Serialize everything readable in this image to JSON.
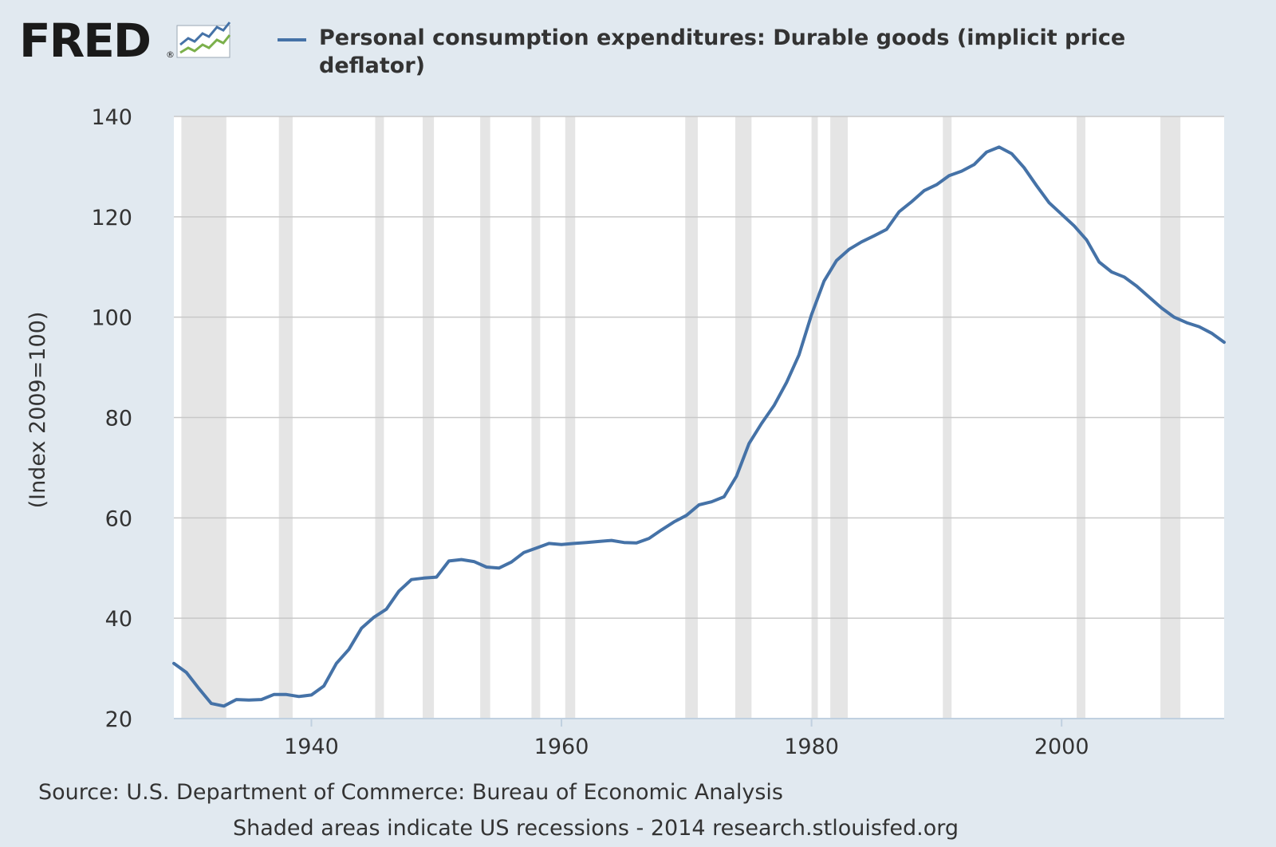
{
  "logo": {
    "text": "FRED",
    "reg": "®"
  },
  "colors": {
    "background": "#e1e9f0",
    "series": "#4572a7",
    "recession": "#e5e5e5",
    "grid": "#c8c8c8",
    "plot": "#ffffff"
  },
  "footer": {
    "source": "Source: U.S. Department of Commerce: Bureau of Economic Analysis",
    "shading_note": "Shaded areas indicate US recessions - 2014 research.stlouisfed.org"
  },
  "chart_data": {
    "type": "line",
    "title": "Personal consumption expenditures: Durable goods (implicit price deflator)",
    "xlabel": "",
    "ylabel": "(Index 2009=100)",
    "xlim": [
      1929,
      2013
    ],
    "ylim": [
      20,
      140
    ],
    "y_ticks": [
      20,
      40,
      60,
      80,
      100,
      120,
      140
    ],
    "x_ticks": [
      1940,
      1960,
      1980,
      2000
    ],
    "grid": true,
    "recessions": [
      [
        1929.6,
        1933.2
      ],
      [
        1937.4,
        1938.5
      ],
      [
        1945.1,
        1945.8
      ],
      [
        1948.9,
        1949.8
      ],
      [
        1953.5,
        1954.3
      ],
      [
        1957.6,
        1958.3
      ],
      [
        1960.3,
        1961.1
      ],
      [
        1969.9,
        1970.9
      ],
      [
        1973.9,
        1975.2
      ],
      [
        1980.0,
        1980.5
      ],
      [
        1981.5,
        1982.9
      ],
      [
        1990.5,
        1991.2
      ],
      [
        2001.2,
        2001.9
      ],
      [
        2007.9,
        2009.5
      ]
    ],
    "series": [
      {
        "name": "Personal consumption expenditures: Durable goods (implicit price deflator)",
        "x": [
          1929,
          1930,
          1931,
          1932,
          1933,
          1934,
          1935,
          1936,
          1937,
          1938,
          1939,
          1940,
          1941,
          1942,
          1943,
          1944,
          1945,
          1946,
          1947,
          1948,
          1949,
          1950,
          1951,
          1952,
          1953,
          1954,
          1955,
          1956,
          1957,
          1958,
          1959,
          1960,
          1961,
          1962,
          1963,
          1964,
          1965,
          1966,
          1967,
          1968,
          1969,
          1970,
          1971,
          1972,
          1973,
          1974,
          1975,
          1976,
          1977,
          1978,
          1979,
          1980,
          1981,
          1982,
          1983,
          1984,
          1985,
          1986,
          1987,
          1988,
          1989,
          1990,
          1991,
          1992,
          1993,
          1994,
          1995,
          1996,
          1997,
          1998,
          1999,
          2000,
          2001,
          2002,
          2003,
          2004,
          2005,
          2006,
          2007,
          2008,
          2009,
          2010,
          2011,
          2012,
          2013
        ],
        "values": [
          31.0,
          29.2,
          26.0,
          23.0,
          22.5,
          23.8,
          23.7,
          23.8,
          24.8,
          24.8,
          24.4,
          24.7,
          26.5,
          31.0,
          33.8,
          38.0,
          40.2,
          41.8,
          45.4,
          47.7,
          48.0,
          48.2,
          51.4,
          51.7,
          51.3,
          50.2,
          50.0,
          51.2,
          53.1,
          54.0,
          54.9,
          54.7,
          54.9,
          55.1,
          55.3,
          55.5,
          55.1,
          55.0,
          55.9,
          57.6,
          59.2,
          60.5,
          62.6,
          63.2,
          64.2,
          68.3,
          74.8,
          78.8,
          82.4,
          87.0,
          92.5,
          100.5,
          107.2,
          111.3,
          113.5,
          115.0,
          116.2,
          117.5,
          121.0,
          123.0,
          125.2,
          126.4,
          128.2,
          129.1,
          130.4,
          132.9,
          133.9,
          132.6,
          129.8,
          126.2,
          122.8,
          120.5,
          118.2,
          115.4,
          111.0,
          109.0,
          108.0,
          106.2,
          104.0,
          101.8,
          100.0,
          98.9,
          98.1,
          96.8,
          95.0
        ]
      }
    ]
  }
}
